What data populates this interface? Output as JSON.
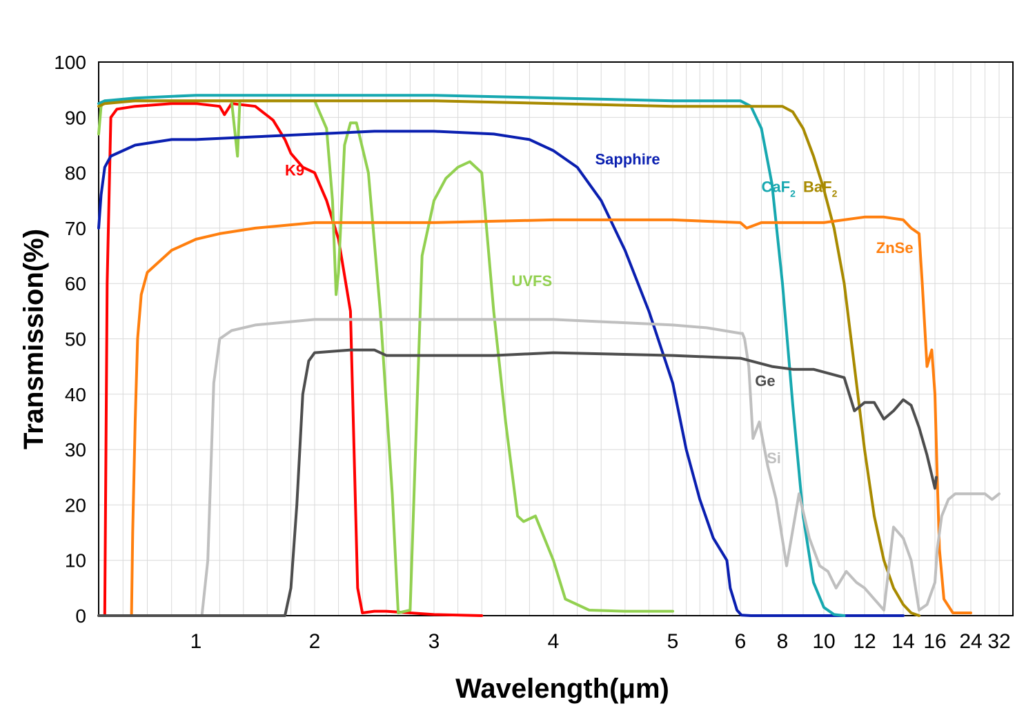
{
  "chart_data": {
    "type": "line",
    "xlabel": "Wavelength(μm)",
    "ylabel": "Transmission(%)",
    "ylim": [
      0,
      100
    ],
    "yticks": [
      "0",
      "10",
      "20",
      "30",
      "40",
      "50",
      "60",
      "70",
      "80",
      "90",
      "100"
    ],
    "xscale": "piecewise: linear 0.2-6 μm, compressed 6-32 μm",
    "xticks": [
      "1",
      "2",
      "3",
      "4",
      "5",
      "6",
      "8",
      "10",
      "12",
      "14",
      "16",
      "24",
      "32"
    ],
    "grid": true,
    "legend": "inline labels",
    "series": [
      {
        "name": "K9",
        "label": "K9",
        "color": "#ff0000",
        "x": [
          0.25,
          0.27,
          0.3,
          0.35,
          0.5,
          0.8,
          1.0,
          1.2,
          1.24,
          1.3,
          1.5,
          1.65,
          1.75,
          1.8,
          1.9,
          2.0,
          2.1,
          2.2,
          2.3,
          2.36,
          2.4,
          2.5,
          2.6,
          3.0,
          3.4
        ],
        "y": [
          0,
          60,
          90,
          91.5,
          92,
          92.5,
          92.5,
          92,
          90.5,
          92.5,
          92,
          89.5,
          86,
          83.5,
          81,
          80,
          75,
          68,
          55,
          5,
          0.5,
          0.8,
          0.8,
          0.2,
          0
        ]
      },
      {
        "name": "UVFS",
        "label": "UVFS",
        "color": "#92d050",
        "x": [
          0.2,
          0.22,
          0.25,
          0.5,
          1.3,
          1.35,
          1.37,
          1.4,
          2.0,
          2.1,
          2.15,
          2.18,
          2.2,
          2.25,
          2.3,
          2.35,
          2.45,
          2.55,
          2.65,
          2.7,
          2.8,
          2.9,
          3.0,
          3.1,
          3.2,
          3.3,
          3.4,
          3.5,
          3.6,
          3.7,
          3.75,
          3.85,
          4.0,
          4.1,
          4.3,
          4.6,
          5.0
        ],
        "y": [
          87,
          92,
          93,
          93,
          93,
          83,
          93,
          93,
          93,
          88,
          75,
          58,
          62,
          85,
          89,
          89,
          80,
          55,
          22,
          0.5,
          1,
          65,
          75,
          79,
          81,
          82,
          80,
          55,
          35,
          18,
          17,
          18,
          10,
          3,
          1,
          0.8,
          0.8
        ]
      },
      {
        "name": "Sapphire",
        "label": "Sapphire",
        "color": "#0a1fb0",
        "x": [
          0.2,
          0.22,
          0.25,
          0.3,
          0.5,
          0.8,
          1.0,
          1.5,
          2.0,
          2.5,
          3.0,
          3.5,
          3.8,
          4.0,
          4.2,
          4.4,
          4.6,
          4.8,
          5.0,
          5.2,
          5.4,
          5.6,
          5.8,
          5.85,
          5.95,
          6.05,
          6.5,
          10,
          14
        ],
        "y": [
          70,
          76,
          81,
          83,
          85,
          86,
          86,
          86.5,
          87,
          87.5,
          87.5,
          87,
          86,
          84,
          81,
          75,
          66,
          55,
          42,
          30,
          21,
          14,
          10,
          5,
          1,
          0.1,
          0,
          0,
          0
        ]
      },
      {
        "name": "CaF2",
        "label": "CaF",
        "sub": "2",
        "color": "#17a8b0",
        "x": [
          0.2,
          0.25,
          0.5,
          1.0,
          2.0,
          3.0,
          4.0,
          5.0,
          6.0,
          6.5,
          7.0,
          7.5,
          8.0,
          8.5,
          9.0,
          9.5,
          10.0,
          10.5,
          11.0
        ],
        "y": [
          92.5,
          93,
          93.5,
          94,
          94,
          94,
          93.5,
          93,
          93,
          92,
          88,
          78,
          60,
          38,
          18,
          6,
          1.5,
          0.2,
          0
        ]
      },
      {
        "name": "BaF2",
        "label": "BaF",
        "sub": "2",
        "color": "#a88a00",
        "x": [
          0.2,
          0.25,
          0.5,
          1.0,
          2.0,
          3.0,
          4.0,
          5.0,
          6.0,
          7.0,
          8.0,
          8.5,
          9.0,
          9.5,
          10.0,
          10.5,
          11.0,
          11.5,
          12.0,
          12.5,
          13.0,
          13.5,
          14.0,
          14.5,
          15.0
        ],
        "y": [
          92,
          92.5,
          93,
          93,
          93,
          93,
          92.5,
          92,
          92,
          92,
          92,
          91,
          88,
          83,
          77,
          70,
          60,
          45,
          30,
          18,
          10,
          5,
          2,
          0.5,
          0
        ]
      },
      {
        "name": "ZnSe",
        "label": "ZnSe",
        "color": "#ff7f0e",
        "x": [
          0.47,
          0.48,
          0.5,
          0.52,
          0.55,
          0.6,
          0.7,
          0.8,
          1.0,
          1.2,
          1.5,
          2.0,
          3.0,
          4.0,
          5.0,
          6.0,
          6.3,
          7.0,
          8.0,
          10.0,
          12.0,
          13.0,
          14.0,
          14.5,
          15.0,
          15.2,
          15.5,
          15.8,
          16.0,
          16.5,
          17.0,
          18.0,
          20.0,
          22.0,
          24.0
        ],
        "y": [
          0,
          15,
          35,
          50,
          58,
          62,
          64,
          66,
          68,
          69,
          70,
          71,
          71,
          71.5,
          71.5,
          71,
          70,
          71,
          71,
          71,
          72,
          72,
          71.5,
          70,
          69,
          60,
          45,
          48,
          40,
          25,
          12,
          3,
          0.5,
          0.5,
          0.5
        ]
      },
      {
        "name": "Si",
        "label": "Si",
        "color": "#bfbfbf",
        "x": [
          1.05,
          1.1,
          1.15,
          1.2,
          1.3,
          1.5,
          2.0,
          3.0,
          4.0,
          5.0,
          5.5,
          6.0,
          6.1,
          6.2,
          6.4,
          6.6,
          6.9,
          7.3,
          7.7,
          8.2,
          8.8,
          9.3,
          9.8,
          10.2,
          10.6,
          11.1,
          11.6,
          12.0,
          12.5,
          13.0,
          13.5,
          14.0,
          14.5,
          15.0,
          15.5,
          16.0,
          16.5,
          17.5,
          19,
          20.5,
          22,
          24,
          26,
          28,
          30,
          32
        ],
        "y": [
          0,
          10,
          42,
          50,
          51.5,
          52.5,
          53.5,
          53.5,
          53.5,
          52.5,
          52,
          51,
          51,
          50,
          45,
          32,
          35,
          27,
          21,
          9,
          22,
          14,
          9,
          8,
          5,
          8,
          6,
          5,
          3,
          1,
          16,
          14,
          10,
          1,
          2,
          6,
          12,
          18,
          21,
          22,
          22,
          22,
          22,
          22,
          21,
          22
        ]
      },
      {
        "name": "Ge",
        "label": "Ge",
        "color": "#4d4d4d",
        "x": [
          0.2,
          1.0,
          1.75,
          1.8,
          1.85,
          1.9,
          1.95,
          2.0,
          2.3,
          2.5,
          2.6,
          2.8,
          3.5,
          4.0,
          5.0,
          6.0,
          6.5,
          7.5,
          8.5,
          9.5,
          10.5,
          11.0,
          11.5,
          12.0,
          12.5,
          13.0,
          13.5,
          14.0,
          14.5,
          15.0,
          15.5,
          16.0,
          16.3
        ],
        "y": [
          0,
          0,
          0,
          5,
          20,
          40,
          46,
          47.5,
          48,
          48,
          47,
          47,
          47,
          47.5,
          47,
          46.5,
          46,
          45,
          44.5,
          44.5,
          43.5,
          43,
          37,
          38.5,
          38.5,
          35.5,
          37,
          39,
          38,
          34,
          29,
          23,
          25
        ]
      }
    ]
  }
}
